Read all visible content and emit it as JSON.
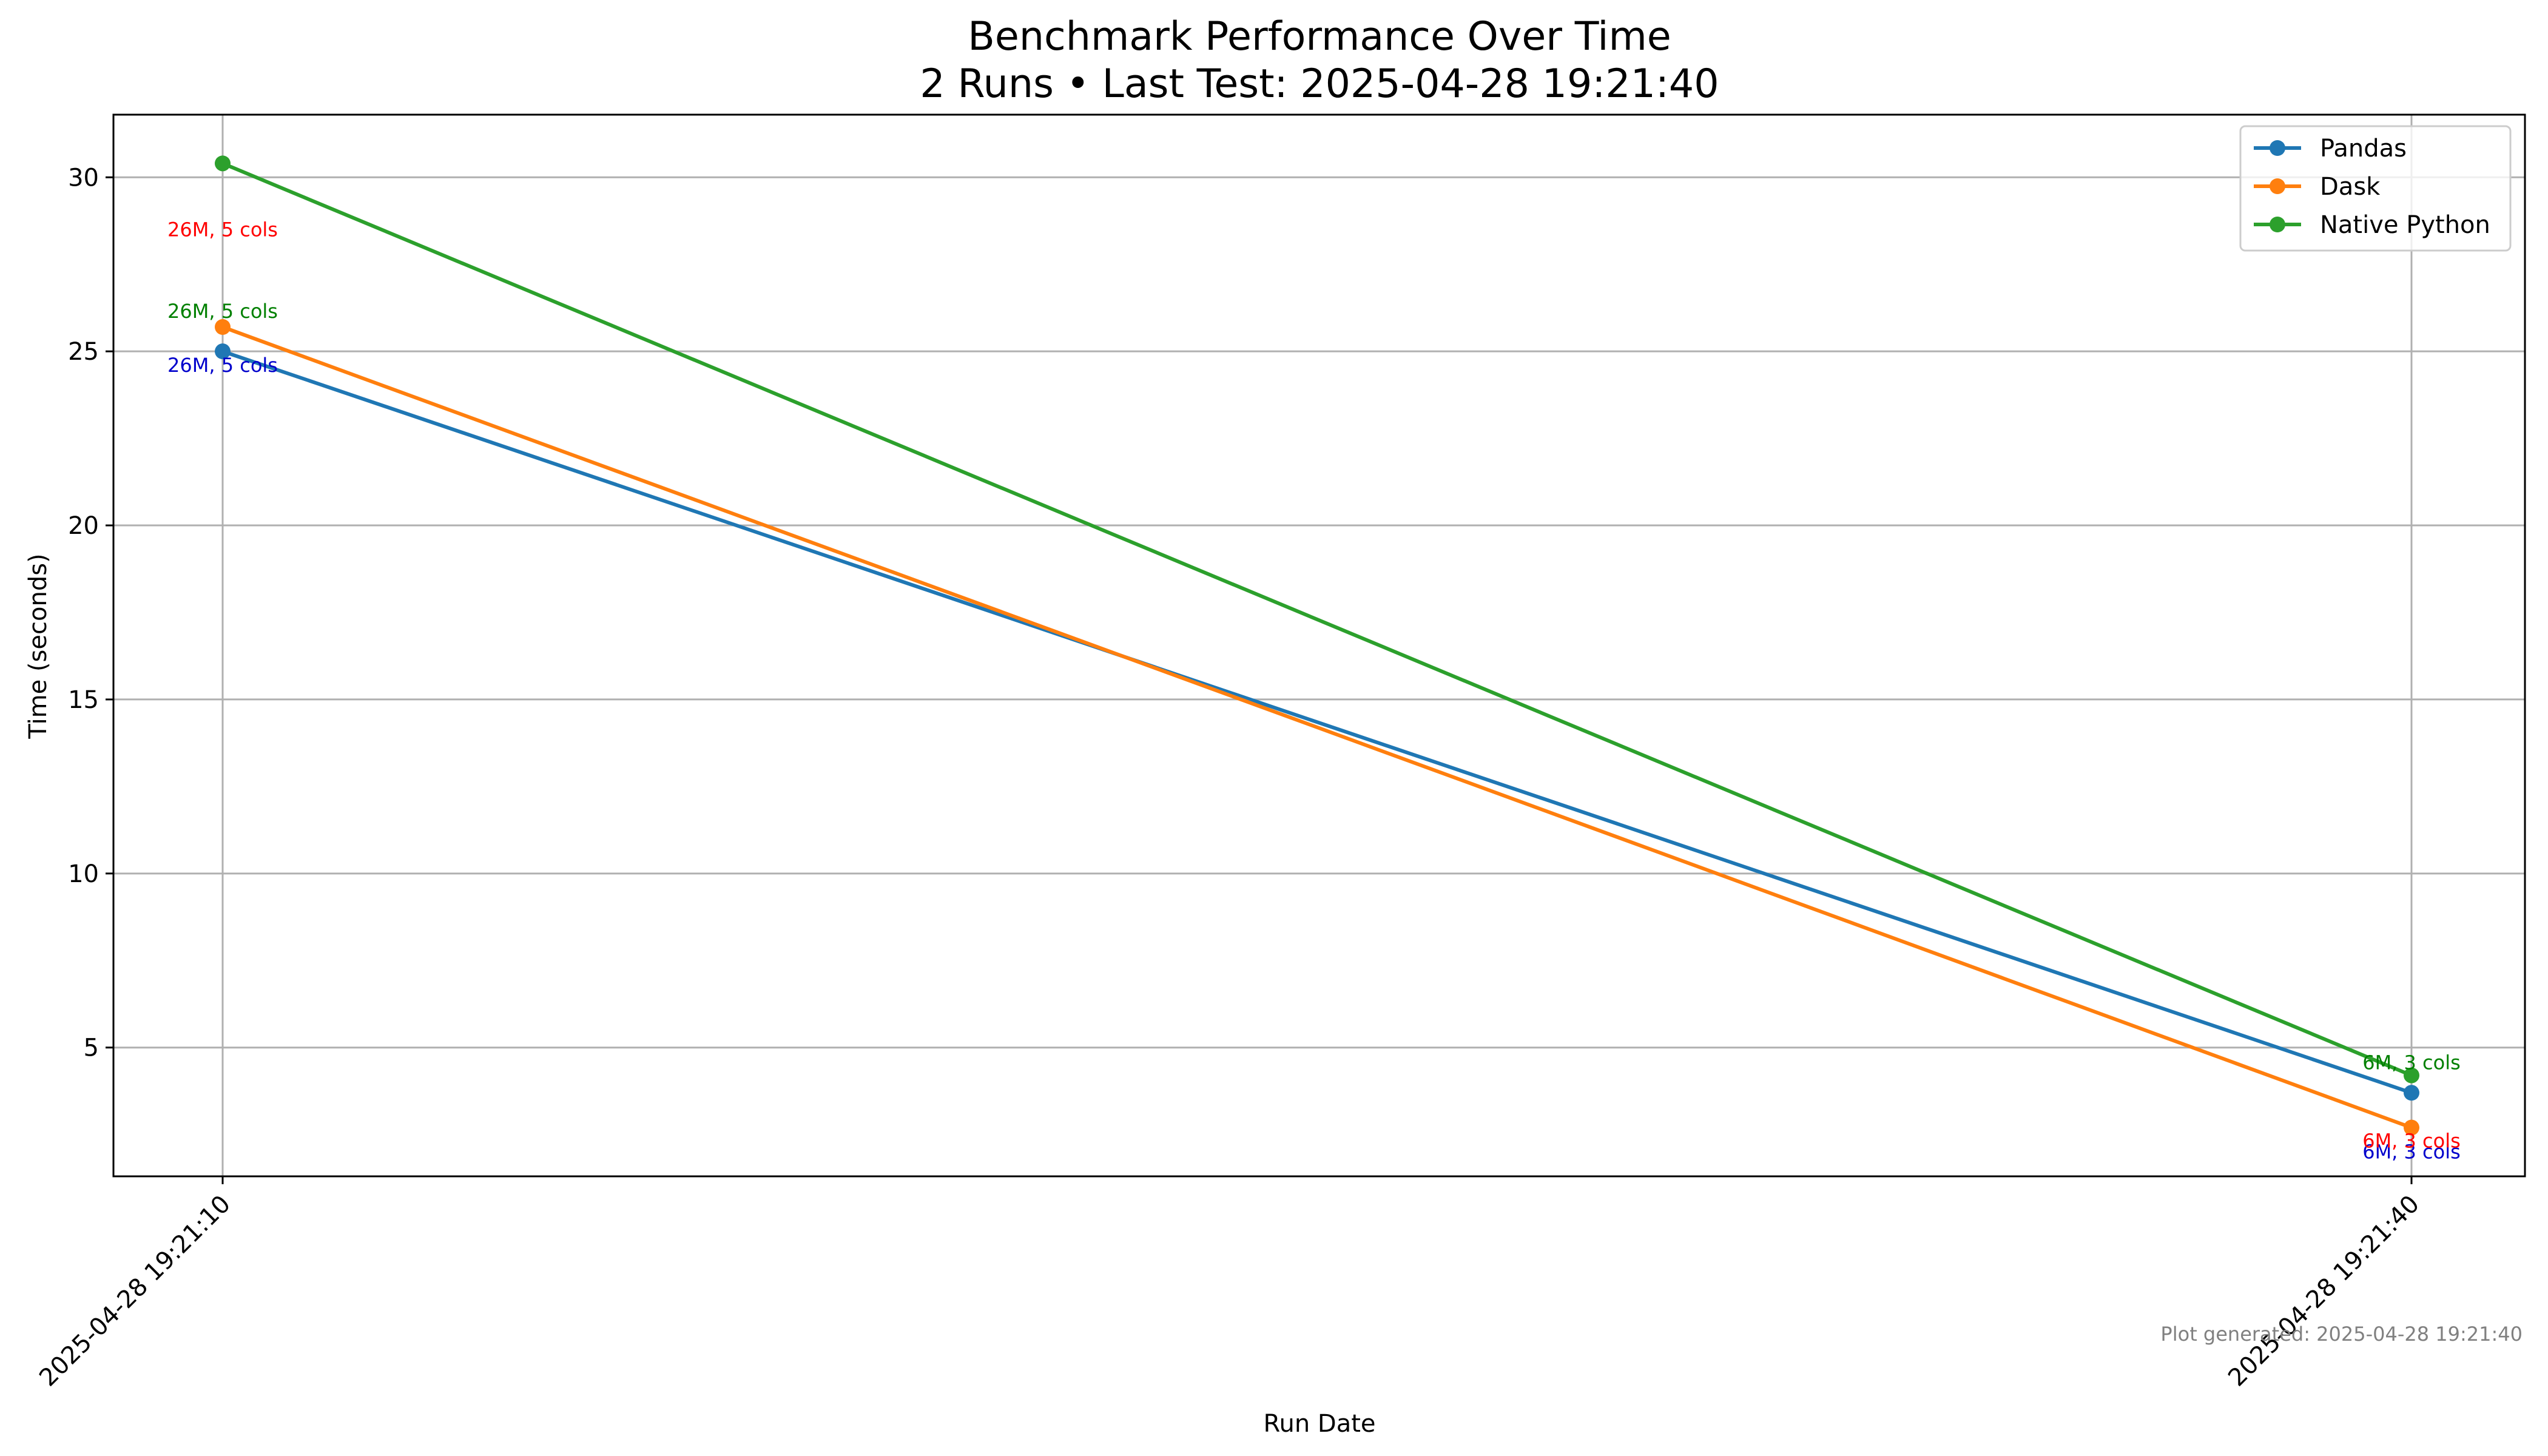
{
  "chart_data": {
    "type": "line",
    "title": "Benchmark Performance Over Time",
    "subtitle": "2 Runs • Last Test: 2025-04-28 19:21:40",
    "xlabel": "Run Date",
    "ylabel": "Time (seconds)",
    "categories": [
      "2025-04-28 19:21:10",
      "2025-04-28 19:21:40"
    ],
    "ylim": [
      1.3,
      31.8
    ],
    "yticks": [
      5,
      10,
      15,
      20,
      25,
      30
    ],
    "grid": true,
    "legend_position": "top-right",
    "series": [
      {
        "name": "Pandas",
        "color": "#1f77b4",
        "values": [
          25.0,
          3.7
        ],
        "annotations": [
          {
            "text": "26M, 5 cols",
            "color": "#0000cc"
          },
          {
            "text": "6M, 3 cols",
            "color": "#0000cc"
          }
        ]
      },
      {
        "name": "Dask",
        "color": "#ff7f0e",
        "values": [
          25.7,
          2.7
        ],
        "annotations": [
          {
            "text": "26M, 5 cols",
            "color": "#ff0000"
          },
          {
            "text": "6M, 3 cols",
            "color": "#ff0000"
          }
        ]
      },
      {
        "name": "Native Python",
        "color": "#2ca02c",
        "values": [
          30.4,
          4.2
        ],
        "annotations": [
          {
            "text": "26M, 5 cols",
            "color": "#008000"
          },
          {
            "text": "6M, 3 cols",
            "color": "#008000"
          }
        ]
      }
    ],
    "footer": "Plot generated: 2025-04-28 19:21:40"
  }
}
